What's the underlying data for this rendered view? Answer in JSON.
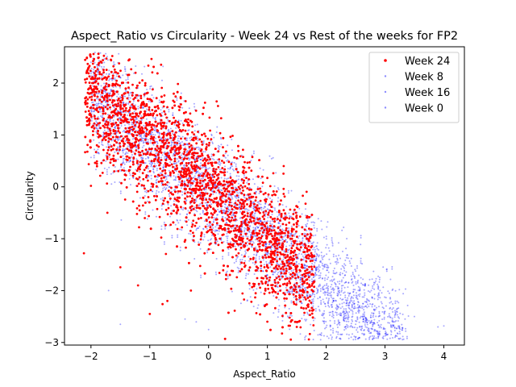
{
  "chart_data": {
    "type": "scatter",
    "title": "Aspect_Ratio vs Circularity - Week 24 vs Rest of the weeks for FP2",
    "xlabel": "Aspect_Ratio",
    "ylabel": "Circularity",
    "xlim": [
      -2.45,
      4.35
    ],
    "ylim": [
      -3.05,
      2.7
    ],
    "xticks": [
      -2,
      -1,
      0,
      1,
      2,
      3,
      4
    ],
    "yticks": [
      -3,
      -2,
      -1,
      0,
      1,
      2
    ],
    "grid": false,
    "legend_position": "top-right",
    "series": [
      {
        "name": "Week 24",
        "color": "#ff0000",
        "marker_size": 2,
        "opacity": 1.0,
        "trend": {
          "x_range": [
            -2.1,
            1.8
          ],
          "slope": -0.95,
          "intercept": 0.05,
          "spread": 0.55,
          "count": 2800
        },
        "outlier_points": [
          [
            -2.12,
            -1.28
          ],
          [
            -1.98,
            2.08
          ],
          [
            -2.0,
            0.02
          ],
          [
            -1.5,
            -1.55
          ],
          [
            -1.2,
            -1.9
          ],
          [
            -1.0,
            -2.45
          ],
          [
            -0.7,
            -2.2
          ],
          [
            -0.3,
            -2.0
          ],
          [
            0.3,
            -1.7
          ],
          [
            1.0,
            -2.6
          ],
          [
            1.5,
            -2.7
          ],
          [
            0.8,
            -2.05
          ],
          [
            1.4,
            -2.6
          ]
        ]
      },
      {
        "name": "Week 8",
        "color": "#0000ff",
        "marker_size": 1.2,
        "opacity": 0.35,
        "trend": {
          "x_range": [
            -2.0,
            3.4
          ],
          "slope": -0.92,
          "intercept": 0.0,
          "spread": 0.5,
          "count": 1400
        },
        "outlier_points": [
          [
            3.9,
            -2.7
          ],
          [
            4.0,
            -2.68
          ],
          [
            3.3,
            -2.72
          ],
          [
            -1.5,
            -2.65
          ],
          [
            -0.4,
            -2.55
          ],
          [
            0.0,
            -2.75
          ]
        ]
      },
      {
        "name": "Week 16",
        "color": "#0000ff",
        "marker_size": 1.2,
        "opacity": 0.35,
        "trend": {
          "x_range": [
            -2.0,
            3.3
          ],
          "slope": -0.92,
          "intercept": 0.02,
          "spread": 0.5,
          "count": 1400
        },
        "outlier_points": [
          [
            -2.0,
            2.4
          ],
          [
            -1.8,
            2.45
          ],
          [
            3.5,
            -2.5
          ]
        ]
      },
      {
        "name": "Week 0",
        "color": "#0000ff",
        "marker_size": 1.2,
        "opacity": 0.35,
        "trend": {
          "x_range": [
            -2.0,
            3.3
          ],
          "slope": -0.92,
          "intercept": -0.02,
          "spread": 0.5,
          "count": 1400
        },
        "outlier_points": [
          [
            -1.7,
            -2.0
          ],
          [
            2.5,
            -2.65
          ],
          [
            3.1,
            -2.7
          ]
        ]
      }
    ]
  }
}
